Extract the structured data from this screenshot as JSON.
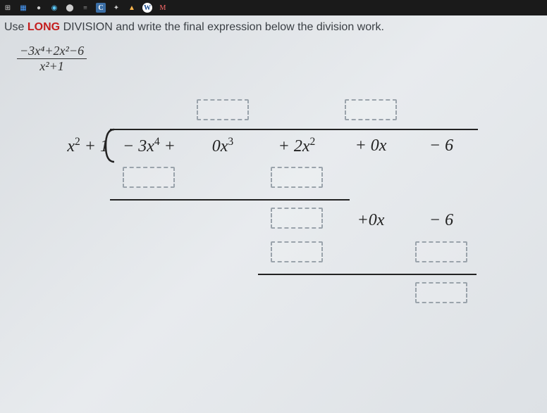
{
  "taskbar": {
    "icons": [
      "⊞",
      "▦",
      "●",
      "◉",
      "⬤",
      "≡",
      "C",
      "✦",
      "▲",
      "W",
      "M"
    ]
  },
  "instruction": {
    "prefix": "Use ",
    "emph": "LONG",
    "rest": " DIVISION and write the final expression below the division work."
  },
  "fraction": {
    "numerator": "−3x⁴+2x²−6",
    "denominator": "x²+1"
  },
  "division": {
    "divisor": "x² + 1",
    "dividend": {
      "t1": "−3x⁴ +",
      "t2": "0x³",
      "t3": "+ 2x²",
      "t4": "+ 0x",
      "t5": "− 6"
    },
    "row4": {
      "t4": "+0x",
      "t5": "− 6"
    }
  },
  "colors": {
    "text": "#222222",
    "accent": "#c41e1e",
    "dash": "#9aa3ab"
  }
}
